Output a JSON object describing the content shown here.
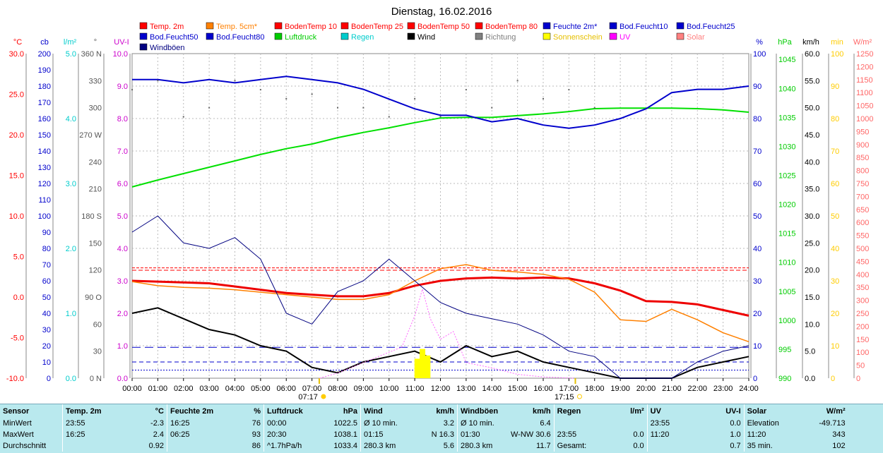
{
  "chart_data": {
    "type": "line",
    "title": "Dienstag, 16.02.2016",
    "x_ticks": [
      "00:00",
      "01:00",
      "02:00",
      "03:00",
      "04:00",
      "05:00",
      "06:00",
      "07:00",
      "08:00",
      "09:00",
      "10:00",
      "11:00",
      "12:00",
      "13:00",
      "14:00",
      "15:00",
      "16:00",
      "17:00",
      "18:00",
      "19:00",
      "20:00",
      "21:00",
      "22:00",
      "23:00",
      "24:00"
    ],
    "sunrise": "07:17",
    "sunset": "17:15",
    "grid": true,
    "legend_position": "top",
    "left_axes": [
      {
        "unit": "°C",
        "color": "#ff0000",
        "ticks": [
          "30.0",
          "25.0",
          "20.0",
          "15.0",
          "10.0",
          "5.0",
          "0.0",
          "-5.0",
          "-10.0"
        ]
      },
      {
        "unit": "cb",
        "color": "#0000cc",
        "ticks": [
          "200",
          "190",
          "180",
          "170",
          "160",
          "150",
          "140",
          "130",
          "120",
          "110",
          "100",
          "90",
          "80",
          "70",
          "60",
          "50",
          "40",
          "30",
          "20",
          "10",
          "0"
        ]
      },
      {
        "unit": "l/m²",
        "color": "#00cccc",
        "ticks": [
          "5.0",
          "4.0",
          "3.0",
          "2.0",
          "1.0",
          "0.0"
        ]
      },
      {
        "unit": "°",
        "color": "#555555",
        "ticks": [
          "360 N",
          "330",
          "300",
          "270 W",
          "240",
          "210",
          "180 S",
          "150",
          "120",
          "90  O",
          "60",
          "30",
          "0   N"
        ]
      },
      {
        "unit": "UV-I",
        "color": "#cc00cc",
        "ticks": [
          "10.0",
          "9.0",
          "8.0",
          "7.0",
          "6.0",
          "5.0",
          "4.0",
          "3.0",
          "2.0",
          "1.0",
          "0.0"
        ]
      }
    ],
    "right_axes": [
      {
        "unit": "%",
        "color": "#0000cc",
        "ticks": [
          "100",
          "90",
          "80",
          "70",
          "60",
          "50",
          "40",
          "30",
          "20",
          "10",
          "0"
        ]
      },
      {
        "unit": "hPa",
        "color": "#00cc00",
        "ticks": [
          "1045",
          "1040",
          "1035",
          "1030",
          "1025",
          "1020",
          "1015",
          "1010",
          "1005",
          "1000",
          "995",
          "990"
        ]
      },
      {
        "unit": "km/h",
        "color": "#000000",
        "ticks": [
          "60.0",
          "55.0",
          "50.0",
          "45.0",
          "40.0",
          "35.0",
          "30.0",
          "25.0",
          "20.0",
          "15.0",
          "10.0",
          "5.0",
          "0.0"
        ]
      },
      {
        "unit": "min",
        "color": "#ffcc00",
        "ticks": [
          "100",
          "90",
          "80",
          "70",
          "60",
          "50",
          "40",
          "30",
          "20",
          "10",
          "0"
        ]
      },
      {
        "unit": "W/m²",
        "color": "#ff6666",
        "ticks": [
          "1250",
          "1200",
          "1150",
          "1100",
          "1050",
          "1000",
          "950",
          "900",
          "850",
          "800",
          "750",
          "700",
          "650",
          "600",
          "550",
          "500",
          "450",
          "400",
          "350",
          "300",
          "250",
          "200",
          "150",
          "100",
          "50",
          "0"
        ]
      }
    ],
    "legend": [
      {
        "label": "Temp. 2m",
        "color": "#ff0000"
      },
      {
        "label": "Temp. 5cm*",
        "color": "#ff8000"
      },
      {
        "label": "BodenTemp 10",
        "color": "#ff0000"
      },
      {
        "label": "BodenTemp 25",
        "color": "#ff0000"
      },
      {
        "label": "BodenTemp 50",
        "color": "#ff0000"
      },
      {
        "label": "BodenTemp 80",
        "color": "#ff0000"
      },
      {
        "label": "Feuchte 2m*",
        "color": "#0000cc"
      },
      {
        "label": "Bod.Feucht10",
        "color": "#0000cc"
      },
      {
        "label": "Bod.Feucht25",
        "color": "#0000cc"
      },
      {
        "label": "Bod.Feucht50",
        "color": "#0000cc"
      },
      {
        "label": "Bod.Feucht80",
        "color": "#0000cc"
      },
      {
        "label": "Luftdruck",
        "color": "#00cc00"
      },
      {
        "label": "Regen",
        "color": "#00cccc"
      },
      {
        "label": "Wind",
        "color": "#000000"
      },
      {
        "label": "Richtung",
        "color": "#808080"
      },
      {
        "label": "Sonnenschein",
        "color": "#ffff00"
      },
      {
        "label": "UV",
        "color": "#ff00ff"
      },
      {
        "label": "Solar",
        "color": "#ff8080"
      },
      {
        "label": "Windböen",
        "color": "#000080"
      }
    ],
    "series": [
      {
        "name": "Luftdruck",
        "unit": "hPa",
        "x_hours": [
          0,
          1,
          2,
          3,
          4,
          5,
          6,
          7,
          8,
          9,
          10,
          11,
          12,
          13,
          14,
          15,
          16,
          17,
          18,
          19,
          20,
          21,
          22,
          23,
          24
        ],
        "values": [
          1023.0,
          1024.2,
          1025.3,
          1026.4,
          1027.5,
          1028.6,
          1029.6,
          1030.4,
          1031.5,
          1032.4,
          1033.2,
          1034.1,
          1034.9,
          1035.0,
          1035.0,
          1035.3,
          1035.6,
          1036.0,
          1036.5,
          1036.6,
          1036.6,
          1036.6,
          1036.5,
          1036.3,
          1035.9
        ]
      },
      {
        "name": "Feuchte 2m*",
        "unit": "%",
        "x_hours": [
          0,
          1,
          2,
          3,
          4,
          5,
          6,
          7,
          8,
          9,
          10,
          11,
          12,
          13,
          14,
          15,
          16,
          17,
          18,
          19,
          20,
          21,
          22,
          23,
          24
        ],
        "values": [
          92,
          92,
          91,
          92,
          91,
          92,
          93,
          92,
          91,
          89,
          86,
          83,
          81,
          81,
          79,
          80,
          78,
          77,
          78,
          80,
          83,
          88,
          89,
          89,
          90
        ]
      },
      {
        "name": "Temp. 2m",
        "unit": "°C",
        "x_hours": [
          0,
          1,
          2,
          3,
          4,
          5,
          6,
          7,
          8,
          9,
          10,
          11,
          12,
          13,
          14,
          15,
          16,
          17,
          18,
          19,
          20,
          21,
          22,
          23,
          24
        ],
        "values": [
          2.0,
          1.9,
          1.8,
          1.7,
          1.3,
          0.9,
          0.5,
          0.3,
          0.1,
          0.1,
          0.5,
          1.4,
          2.0,
          2.3,
          2.4,
          2.3,
          2.4,
          2.3,
          1.7,
          0.8,
          -0.5,
          -0.6,
          -0.9,
          -1.6,
          -2.3
        ]
      },
      {
        "name": "Temp. 5cm*",
        "unit": "°C",
        "x_hours": [
          0,
          1,
          2,
          3,
          4,
          5,
          6,
          7,
          8,
          9,
          10,
          11,
          12,
          13,
          14,
          15,
          16,
          17,
          18,
          19,
          20,
          21,
          22,
          23,
          24
        ],
        "values": [
          1.9,
          1.4,
          1.2,
          1.1,
          0.9,
          0.6,
          0.3,
          0.0,
          -0.3,
          -0.3,
          0.3,
          2.0,
          3.5,
          4.0,
          3.3,
          3.1,
          2.8,
          2.2,
          0.6,
          -2.8,
          -3.0,
          -1.5,
          -2.8,
          -4.4,
          -5.5
        ]
      },
      {
        "name": "Wind",
        "unit": "km/h",
        "x_hours": [
          0,
          1,
          2,
          3,
          4,
          5,
          6,
          7,
          8,
          9,
          10,
          11,
          12,
          13,
          14,
          15,
          16,
          17,
          18,
          19,
          20,
          21,
          22,
          23,
          24
        ],
        "values": [
          12,
          13,
          11,
          9,
          8,
          6,
          5,
          2,
          1,
          3,
          4,
          5,
          3,
          6,
          4,
          5,
          3,
          2,
          1,
          0,
          0,
          0,
          2,
          3,
          4
        ]
      },
      {
        "name": "Windböen",
        "unit": "km/h",
        "x_hours": [
          0,
          1,
          2,
          3,
          4,
          5,
          6,
          7,
          8,
          9,
          10,
          11,
          12,
          13,
          14,
          15,
          16,
          17,
          18,
          19,
          20,
          21,
          22,
          23,
          24
        ],
        "values": [
          27,
          30,
          25,
          24,
          26,
          22,
          12,
          10,
          16,
          18,
          22,
          18,
          14,
          12,
          11,
          10,
          8,
          5,
          4,
          0,
          0,
          0,
          3,
          5,
          6
        ]
      },
      {
        "name": "Richtung",
        "unit": "°",
        "x_hours": [
          0,
          1,
          2,
          3,
          4,
          5,
          6,
          7,
          8,
          9,
          10,
          11,
          12,
          13,
          14,
          15,
          16,
          17,
          18,
          19,
          20,
          21,
          22,
          23,
          24
        ],
        "values": [
          320,
          330,
          290,
          300,
          330,
          320,
          310,
          315,
          300,
          300,
          290,
          310,
          290,
          320,
          300,
          330,
          310,
          320,
          300,
          0,
          0,
          0,
          0,
          0,
          0
        ]
      },
      {
        "name": "Solar",
        "unit": "W/m²",
        "x_hours": [
          7.3,
          8,
          9,
          10,
          10.5,
          11,
          11.3,
          11.6,
          12,
          12.5,
          13,
          14,
          15,
          16,
          17.2
        ],
        "values": [
          0,
          20,
          60,
          100,
          120,
          240,
          343,
          230,
          150,
          180,
          60,
          40,
          15,
          5,
          0
        ]
      },
      {
        "name": "Sonnenschein",
        "unit": "min",
        "x_hours": [
          11.1,
          11.3,
          11.5
        ],
        "values": [
          6,
          9,
          7
        ]
      }
    ]
  },
  "stats": {
    "headers": [
      {
        "label": "Sensor",
        "unit": ""
      },
      {
        "label": "Temp. 2m",
        "unit": "°C"
      },
      {
        "label": "Feuchte 2m",
        "unit": "%"
      },
      {
        "label": "Luftdruck",
        "unit": "hPa"
      },
      {
        "label": "Wind",
        "unit": "km/h"
      },
      {
        "label": "Windböen",
        "unit": "km/h"
      },
      {
        "label": "Regen",
        "unit": "l/m²"
      },
      {
        "label": "UV",
        "unit": "UV-I"
      },
      {
        "label": "Solar",
        "unit": "W/m²"
      }
    ],
    "rows": [
      {
        "label": "MinWert",
        "cells": [
          [
            "23:55",
            "-2.3"
          ],
          [
            "16:25",
            "76"
          ],
          [
            "00:00",
            "1022.5"
          ],
          [
            "Ø 10 min.",
            "3.2"
          ],
          [
            "Ø 10 min.",
            "6.4"
          ],
          [
            "",
            ""
          ],
          [
            "23:55",
            "0.0"
          ],
          [
            "Elevation",
            "-49.713"
          ]
        ]
      },
      {
        "label": "MaxWert",
        "cells": [
          [
            "16:25",
            "2.4"
          ],
          [
            "06:25",
            "93"
          ],
          [
            "20:30",
            "1038.1"
          ],
          [
            "01:15",
            "N 16.3"
          ],
          [
            "01:30",
            "W-NW 30.6"
          ],
          [
            "23:55",
            "0.0"
          ],
          [
            "11:20",
            "1.0"
          ],
          [
            "11:20",
            "343"
          ]
        ]
      },
      {
        "label": "Durchschnitt",
        "cells": [
          [
            "",
            "0.92"
          ],
          [
            "",
            "86"
          ],
          [
            "^1.7hPa/h",
            "1033.4"
          ],
          [
            "280.3 km",
            "5.6"
          ],
          [
            "280.3 km",
            "11.7"
          ],
          [
            "Gesamt:",
            "0.0"
          ],
          [
            "",
            "0.7"
          ],
          [
            "35 min.",
            "102"
          ]
        ]
      }
    ]
  }
}
